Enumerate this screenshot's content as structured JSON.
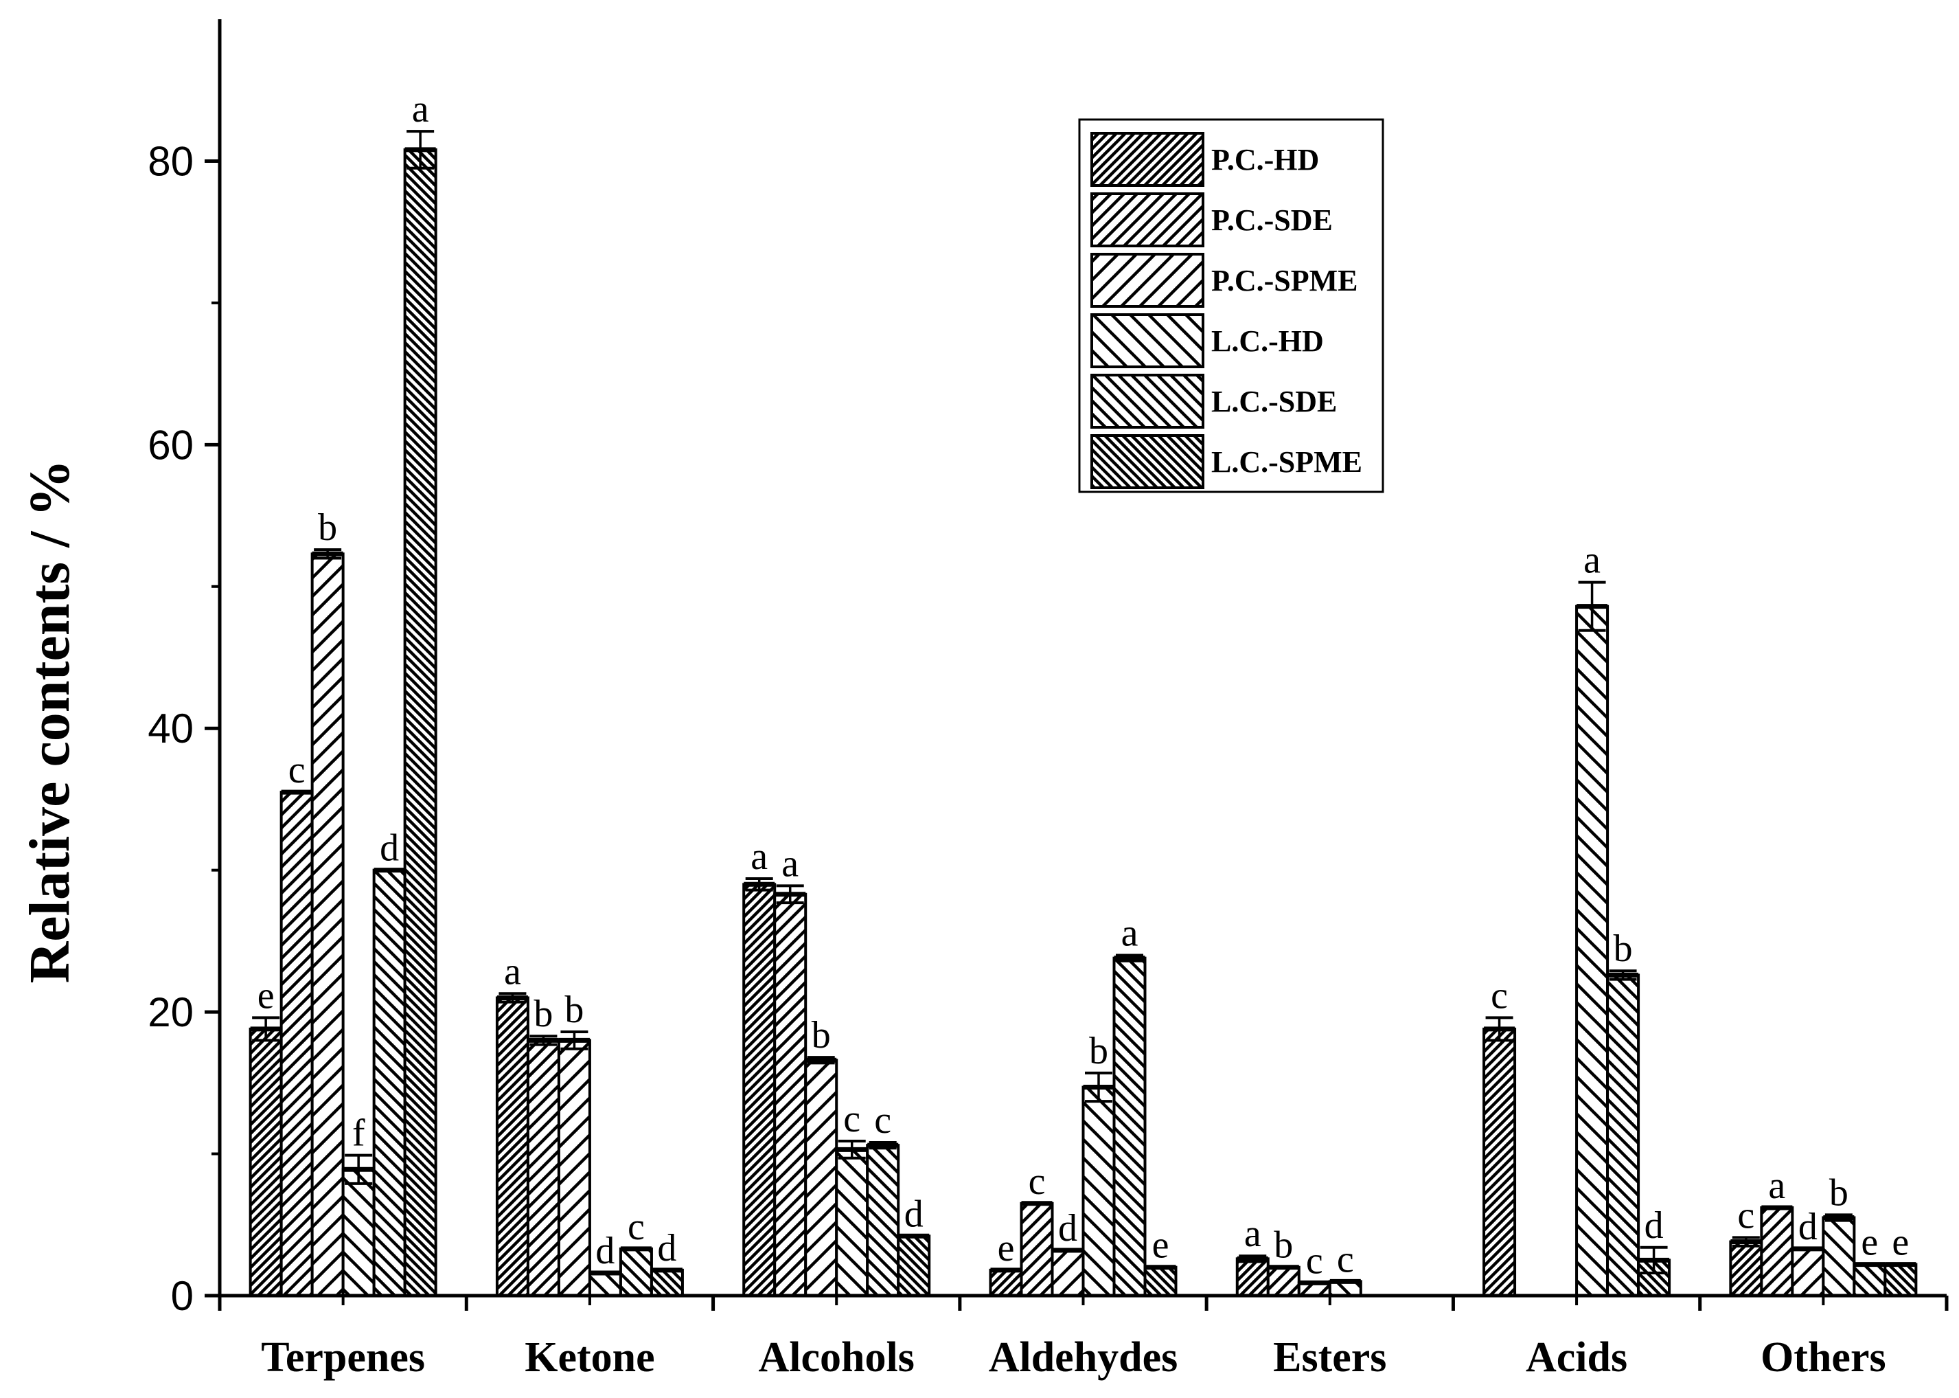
{
  "chart_data": {
    "type": "bar",
    "title": "",
    "xlabel": "",
    "ylabel": "Relative contents / %",
    "ylim": [
      0,
      90
    ],
    "yticks": [
      0,
      20,
      40,
      60,
      80
    ],
    "legend_position": "top-right",
    "grid": false,
    "categories": [
      "Terpenes",
      "Ketone",
      "Alcohols",
      "Aldehydes",
      "Esters",
      "Acids",
      "Others"
    ],
    "series": [
      {
        "name": "P.C.-HD",
        "hatch": "dense-forward",
        "values": [
          18.8,
          21.0,
          29.0,
          1.8,
          2.6,
          18.8,
          3.8
        ],
        "errors": [
          0.8,
          0.3,
          0.4,
          0,
          0.2,
          0.8,
          0.3
        ],
        "labels": [
          "e",
          "a",
          "a",
          "e",
          "a",
          "c",
          "c"
        ]
      },
      {
        "name": "P.C.-SDE",
        "hatch": "forward",
        "values": [
          35.5,
          18.0,
          28.3,
          6.5,
          2.0,
          null,
          6.2
        ],
        "errors": [
          0,
          0.3,
          0.6,
          0,
          0,
          0,
          0
        ],
        "labels": [
          "c",
          "b",
          "a",
          "c",
          "b",
          "",
          "a"
        ]
      },
      {
        "name": "P.C.-SPME",
        "hatch": "wide-forward",
        "values": [
          52.3,
          18.0,
          16.6,
          3.2,
          0.9,
          null,
          3.3
        ],
        "errors": [
          0.3,
          0.6,
          0.2,
          0,
          0,
          0,
          0
        ],
        "labels": [
          "b",
          "b",
          "b",
          "d",
          "c",
          "",
          "d"
        ]
      },
      {
        "name": "L.C.-HD",
        "hatch": "wide-backward",
        "values": [
          8.9,
          1.6,
          10.3,
          14.7,
          1.0,
          48.6,
          5.5
        ],
        "errors": [
          1.0,
          0,
          0.6,
          1.0,
          0,
          1.7,
          0.2
        ],
        "labels": [
          "f",
          "d",
          "c",
          "b",
          "c",
          "a",
          "b"
        ]
      },
      {
        "name": "L.C.-SDE",
        "hatch": "backward",
        "values": [
          30.0,
          3.3,
          10.6,
          23.8,
          null,
          22.6,
          2.2
        ],
        "errors": [
          0,
          0,
          0.2,
          0.2,
          0,
          0.3,
          0
        ],
        "labels": [
          "d",
          "c",
          "c",
          "a",
          "",
          "b",
          "e"
        ]
      },
      {
        "name": "L.C.-SPME",
        "hatch": "dense-backward",
        "values": [
          80.8,
          1.8,
          4.2,
          2.0,
          null,
          2.5,
          2.2
        ],
        "errors": [
          1.3,
          0,
          0,
          0,
          0,
          0.9,
          0
        ],
        "labels": [
          "a",
          "d",
          "d",
          "e",
          "",
          "d",
          "e"
        ]
      }
    ]
  }
}
